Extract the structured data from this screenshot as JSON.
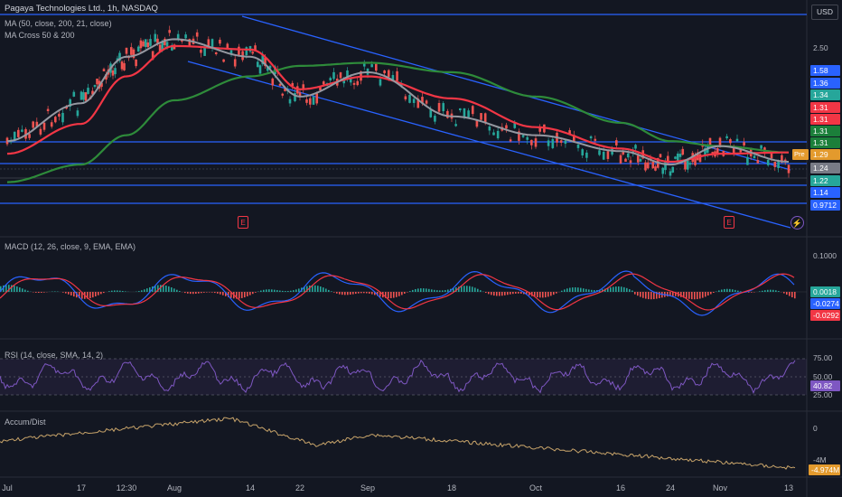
{
  "header": {
    "symbol_title": "Pagaya Technologies Ltd., 1h, NASDAQ",
    "ind_ma": "MA (50, close, 200, 21, close)",
    "ind_macross": "MA Cross 50 & 200"
  },
  "currency_button": "USD",
  "price_axis_label": "2.50",
  "price_tags": [
    {
      "text": "1.58",
      "color": "#2962ff"
    },
    {
      "text": "1.36",
      "color": "#2962ff"
    },
    {
      "text": "1.34",
      "color": "#26a69a"
    },
    {
      "text": "1.31",
      "color": "#f23645"
    },
    {
      "text": "1.31",
      "color": "#f23645"
    },
    {
      "text": "1.31",
      "color": "#1b7f3a"
    },
    {
      "text": "1.31",
      "color": "#1b7f3a"
    },
    {
      "text": "1.29",
      "color": "#e39a2d"
    },
    {
      "text": "1.24",
      "color": "#787b86"
    },
    {
      "text": "1.22",
      "color": "#26a69a"
    },
    {
      "text": "1.14",
      "color": "#2962ff"
    },
    {
      "text": "0.9712",
      "color": "#2962ff"
    }
  ],
  "pre_label": "Pre",
  "earnings_badge": "E",
  "macd": {
    "title": "MACD (12, 26, close, 9, EMA, EMA)",
    "axis": "0.1000",
    "tags": [
      {
        "text": "0.0018",
        "color": "#26a69a"
      },
      {
        "text": "-0.0274",
        "color": "#2962ff"
      },
      {
        "text": "-0.0292",
        "color": "#f23645"
      }
    ]
  },
  "rsi": {
    "title": "RSI (14, close, SMA, 14, 2)",
    "axis": [
      "75.00",
      "50.00",
      "25.00"
    ],
    "tag": {
      "text": "40.82",
      "color": "#7e57c2"
    }
  },
  "accum": {
    "title": "Accum/Dist",
    "axis": [
      "0",
      "-4M"
    ],
    "tag": {
      "text": "-4.974M",
      "color": "#e39a2d"
    }
  },
  "x_ticks": [
    "Jul",
    "17",
    "12:30",
    "Aug",
    "14",
    "22",
    "Sep",
    "18",
    "Oct",
    "16",
    "24",
    "Nov",
    "13"
  ],
  "colors": {
    "background": "#131722",
    "ma50": "#f23645",
    "ma200": "#2e8b3a",
    "ma21": "#9598a1",
    "channel": "#2962ff",
    "macd_line": "#2962ff",
    "signal_line": "#f23645",
    "rsi_line": "#7e57c2",
    "accum_line": "#c8a46a"
  },
  "chart_data": [
    {
      "type": "line",
      "title": "Pagaya Technologies Ltd., 1h, NASDAQ",
      "series_points": "price/MA series approximated from visual",
      "x": [
        "Jul",
        "17",
        "12:30",
        "Aug",
        "14",
        "22",
        "Sep",
        "18",
        "Oct",
        "16",
        "24",
        "Nov",
        "13"
      ],
      "series": [
        {
          "name": "MA 50",
          "values": [
            1.3,
            1.55,
            2.05,
            2.45,
            2.4,
            1.9,
            2.05,
            1.8,
            1.52,
            1.34,
            1.24,
            1.3,
            1.31
          ]
        },
        {
          "name": "MA 200",
          "values": [
            1.1,
            1.22,
            1.45,
            1.78,
            2.05,
            2.18,
            2.22,
            2.1,
            1.82,
            1.56,
            1.4,
            1.36,
            1.31
          ]
        },
        {
          "name": "MA 21",
          "values": [
            1.4,
            1.75,
            2.3,
            2.55,
            2.3,
            1.82,
            2.1,
            1.62,
            1.45,
            1.32,
            1.22,
            1.36,
            1.24
          ]
        }
      ],
      "horizontal_levels": [
        2.95,
        1.58,
        1.36,
        1.31,
        1.14,
        0.9712
      ],
      "ylim": [
        0.85,
        3.0
      ]
    },
    {
      "type": "line",
      "title": "MACD (12, 26, close, 9, EMA, EMA)",
      "series": [
        {
          "name": "MACD",
          "last": -0.0274
        },
        {
          "name": "Signal",
          "last": -0.0292
        },
        {
          "name": "Histogram",
          "last": 0.0018
        }
      ]
    },
    {
      "type": "line",
      "title": "RSI (14, close, SMA, 14, 2)",
      "levels": [
        75,
        50,
        25
      ],
      "last": 40.82
    },
    {
      "type": "line",
      "title": "Accum/Dist",
      "last": "-4.974M"
    }
  ]
}
